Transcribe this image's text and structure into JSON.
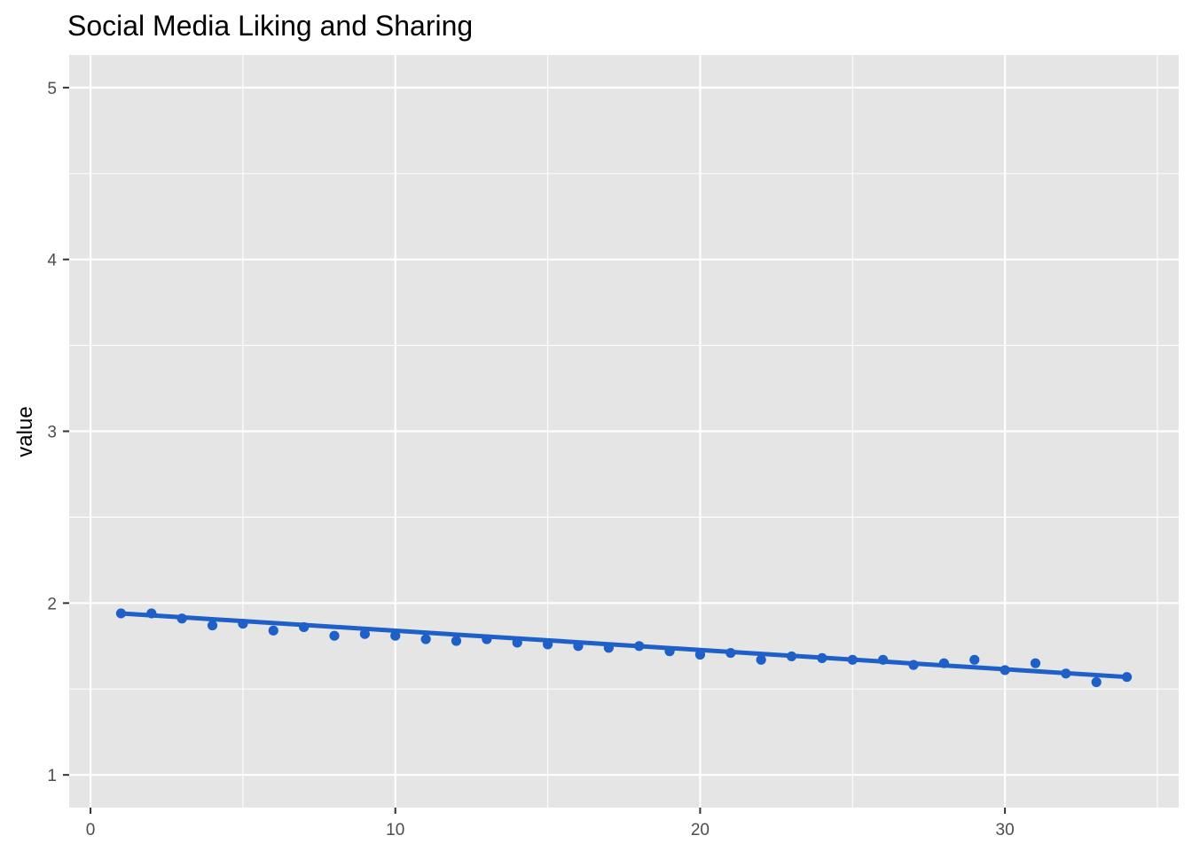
{
  "chart_data": {
    "type": "scatter",
    "title": "Social Media Liking and Sharing",
    "xlabel": "",
    "ylabel": "value",
    "xlim": [
      -0.7,
      35.7
    ],
    "ylim": [
      0.81,
      5.19
    ],
    "x_ticks": [
      0,
      10,
      20,
      30
    ],
    "x_tick_labels": [
      "0",
      "10",
      "20",
      "30"
    ],
    "y_ticks": [
      1,
      2,
      3,
      4,
      5
    ],
    "y_tick_labels": [
      "1",
      "2",
      "3",
      "4",
      "5"
    ],
    "grid": true,
    "legend": "none",
    "colors": {
      "panel": "#e5e5e5",
      "grid": "#ffffff",
      "series": "#1f5fc8"
    },
    "series": [
      {
        "x": [
          1,
          2,
          3,
          4,
          5,
          6,
          7,
          8,
          9,
          10,
          11,
          12,
          13,
          14,
          15,
          16,
          17,
          18,
          19,
          20,
          21,
          22,
          23,
          24,
          25,
          26,
          27,
          28,
          29,
          30,
          31,
          32,
          33,
          34
        ],
        "values": [
          1.94,
          1.94,
          1.91,
          1.87,
          1.88,
          1.84,
          1.86,
          1.81,
          1.82,
          1.81,
          1.79,
          1.78,
          1.79,
          1.77,
          1.76,
          1.75,
          1.74,
          1.75,
          1.72,
          1.7,
          1.71,
          1.67,
          1.69,
          1.68,
          1.67,
          1.67,
          1.64,
          1.65,
          1.67,
          1.61,
          1.65,
          1.59,
          1.54,
          1.57
        ]
      }
    ],
    "trend_line": {
      "type": "linear",
      "x": [
        1,
        34
      ],
      "values": [
        1.94,
        1.57
      ]
    }
  }
}
